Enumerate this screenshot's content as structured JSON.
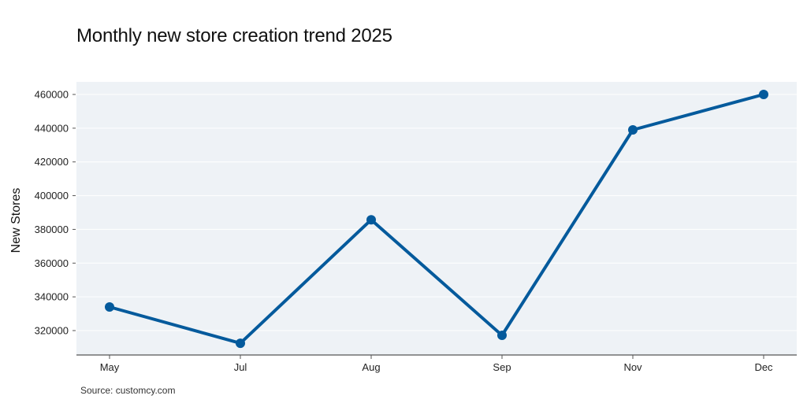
{
  "title": "Monthly new store creation trend 2025",
  "source": "Source: customcy.com",
  "colors": {
    "line": "#045a9c",
    "plot_background": "#eef2f6",
    "gridline": "#ffffff",
    "axis": "#555555"
  },
  "chart_data": {
    "type": "line",
    "title": "Monthly new store creation trend 2025",
    "xlabel": "",
    "ylabel": "New Stores",
    "categories": [
      "May",
      "Jul",
      "Aug",
      "Sep",
      "Nov",
      "Dec"
    ],
    "series": [
      {
        "name": "New Stores",
        "values": [
          334000,
          312500,
          385700,
          317200,
          439000,
          460000
        ]
      }
    ],
    "yticks": [
      320000,
      340000,
      360000,
      380000,
      400000,
      420000,
      440000,
      460000
    ],
    "ylim": [
      305000,
      467500
    ],
    "grid": true,
    "legend": "none",
    "markers": true
  }
}
